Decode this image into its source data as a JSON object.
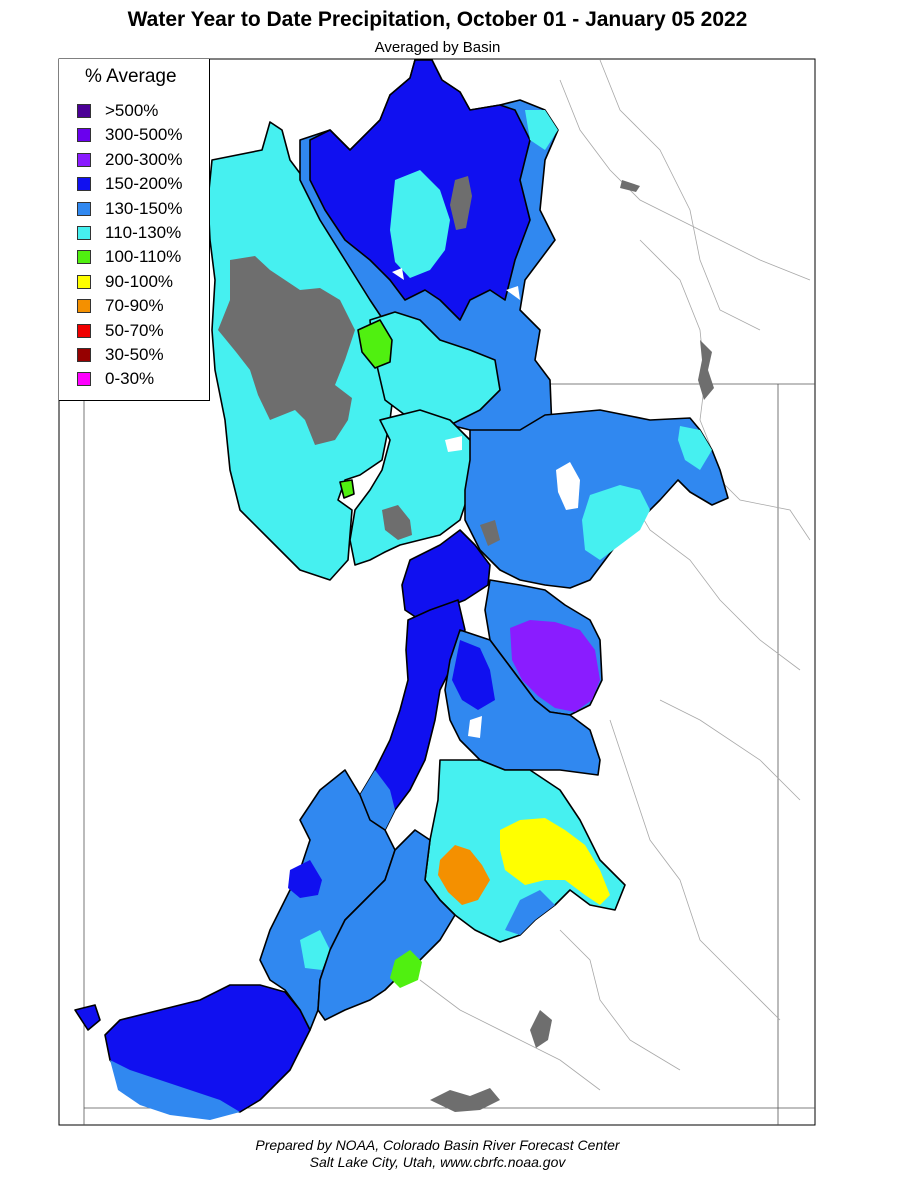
{
  "title": "Water Year to Date Precipitation, October 01  - January 05 2022",
  "subtitle": "Averaged by Basin",
  "legend": {
    "title": "% Average",
    "items": [
      {
        "label": ">500%",
        "color": "#4b0096"
      },
      {
        "label": "300-500%",
        "color": "#6a00ee"
      },
      {
        "label": "200-300%",
        "color": "#8a1cff"
      },
      {
        "label": "150-200%",
        "color": "#1010f0"
      },
      {
        "label": "130-150%",
        "color": "#3088f0"
      },
      {
        "label": "110-130%",
        "color": "#46f0f0"
      },
      {
        "label": "100-110%",
        "color": "#50f010"
      },
      {
        "label": "90-100%",
        "color": "#ffff00"
      },
      {
        "label": "70-90%",
        "color": "#f49000"
      },
      {
        "label": "50-70%",
        "color": "#f00000"
      },
      {
        "label": "30-50%",
        "color": "#960000"
      },
      {
        "label": "0-30%",
        "color": "#ff00ff"
      }
    ]
  },
  "colors": {
    "no_data": "#6e6e6e",
    "basin_border": "#000000",
    "river": "#9a9a9a"
  },
  "credits": [
    "Prepared by NOAA, Colorado Basin River Forecast Center",
    "Salt Lake City, Utah, www.cbrfc.noaa.gov"
  ]
}
